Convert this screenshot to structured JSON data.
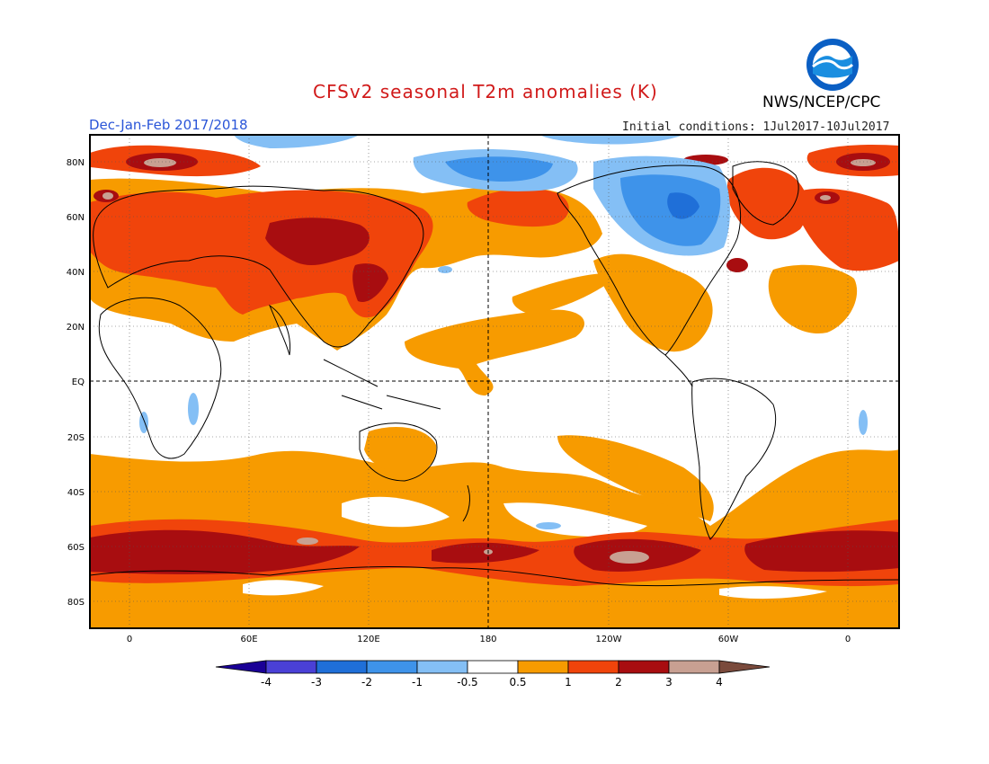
{
  "title": "CFSv2 seasonal T2m anomalies (K)",
  "agency": "NWS/NCEP/CPC",
  "logo_text": "NOAA",
  "season": "Dec-Jan-Feb 2017/2018",
  "initial_conditions": "Initial conditions: 1Jul2017-10Jul2017",
  "lat_labels": [
    "80N",
    "60N",
    "40N",
    "20N",
    "EQ",
    "20S",
    "40S",
    "60S",
    "80S"
  ],
  "lon_labels": [
    "0",
    "60E",
    "120E",
    "180",
    "120W",
    "60W",
    "0"
  ],
  "colorbar": {
    "labels": [
      "-4",
      "-3",
      "-2",
      "-1",
      "-0.5",
      "0.5",
      "1",
      "2",
      "3",
      "4"
    ],
    "colors": [
      "#1a0096",
      "#4a40d6",
      "#1f6fd8",
      "#3e93ea",
      "#84bff5",
      "#ffffff",
      "#f79b00",
      "#f0440b",
      "#a80d10",
      "#c8a092",
      "#7a4a3c"
    ]
  },
  "legend_units": "K"
}
